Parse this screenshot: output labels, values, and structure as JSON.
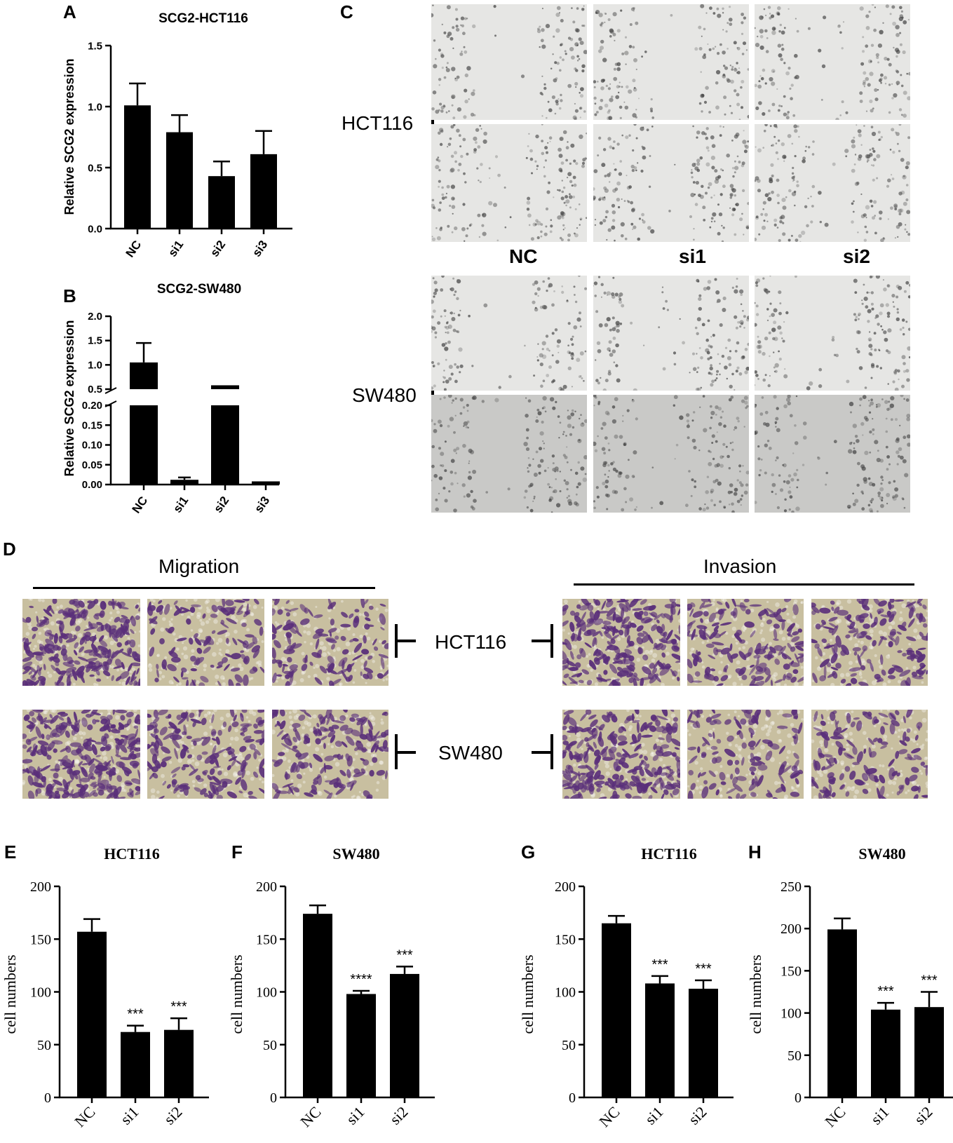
{
  "panels": {
    "A": "A",
    "B": "B",
    "C": "C",
    "D": "D",
    "E": "E",
    "F": "F",
    "G": "G",
    "H": "H"
  },
  "panel_c": {
    "row_labels": [
      "HCT116",
      "SW480"
    ],
    "col_labels": [
      "NC",
      "si1",
      "si2"
    ]
  },
  "panel_d": {
    "migration_label": "Migration",
    "invasion_label": "Invasion",
    "row_labels": [
      "HCT116",
      "SW480"
    ]
  },
  "colors": {
    "bar": "#000000",
    "wound_light": "#e6e6e4",
    "wound_dark": "#c9c9c7",
    "stain_bg": "#c8bfa0",
    "stain_cell": "#5a2f7a"
  },
  "chart_data": [
    {
      "id": "A",
      "type": "bar",
      "title": "SCG2-HCT116",
      "ylabel": "Relative SCG2 expression",
      "xlabel": "",
      "categories": [
        "NC",
        "si1",
        "si2",
        "si3"
      ],
      "values": [
        1.01,
        0.79,
        0.43,
        0.61
      ],
      "errors": [
        0.18,
        0.14,
        0.12,
        0.19
      ],
      "ylim": [
        0,
        1.5
      ],
      "yticks": [
        "0.0",
        "0.5",
        "1.0",
        "1.5"
      ],
      "significance": [
        "",
        "",
        "",
        ""
      ]
    },
    {
      "id": "B",
      "type": "bar",
      "title": "SCG2-SW480",
      "ylabel": "Relative SCG2 expression",
      "xlabel": "",
      "categories": [
        "NC",
        "si1",
        "si2",
        "si3"
      ],
      "values": [
        1.05,
        0.012,
        0.58,
        0.008
      ],
      "errors": [
        0.4,
        0.006,
        0.0,
        0.0
      ],
      "axis_break": [
        0.2,
        0.5
      ],
      "ylim_lower": [
        0,
        0.2
      ],
      "ylim_upper": [
        0.5,
        2.0
      ],
      "yticks_lower": [
        "0.00",
        "0.05",
        "0.10",
        "0.15",
        "0.20"
      ],
      "yticks_upper": [
        "0.5",
        "1.0",
        "1.5",
        "2.0"
      ],
      "significance": [
        "",
        "",
        "",
        ""
      ]
    },
    {
      "id": "E",
      "type": "bar",
      "title": "HCT116",
      "ylabel": "cell numbers",
      "xlabel": "",
      "categories": [
        "NC",
        "si1",
        "si2"
      ],
      "values": [
        157,
        62,
        64
      ],
      "errors": [
        12,
        6,
        11
      ],
      "ylim": [
        0,
        200
      ],
      "yticks": [
        "0",
        "50",
        "100",
        "150",
        "200"
      ],
      "significance": [
        "",
        "***",
        "***"
      ]
    },
    {
      "id": "F",
      "type": "bar",
      "title": "SW480",
      "ylabel": "cell numbers",
      "xlabel": "",
      "categories": [
        "NC",
        "si1",
        "si2"
      ],
      "values": [
        174,
        98,
        117
      ],
      "errors": [
        8,
        3,
        7
      ],
      "ylim": [
        0,
        200
      ],
      "yticks": [
        "0",
        "50",
        "100",
        "150",
        "200"
      ],
      "significance": [
        "",
        "****",
        "***"
      ]
    },
    {
      "id": "G",
      "type": "bar",
      "title": "HCT116",
      "ylabel": "cell numbers",
      "xlabel": "",
      "categories": [
        "NC",
        "si1",
        "si2"
      ],
      "values": [
        165,
        108,
        103
      ],
      "errors": [
        7,
        7,
        8
      ],
      "ylim": [
        0,
        200
      ],
      "yticks": [
        "0",
        "50",
        "100",
        "150",
        "200"
      ],
      "significance": [
        "",
        "***",
        "***"
      ]
    },
    {
      "id": "H",
      "type": "bar",
      "title": "SW480",
      "ylabel": "cell numbers",
      "xlabel": "",
      "categories": [
        "NC",
        "si1",
        "si2"
      ],
      "values": [
        199,
        104,
        107
      ],
      "errors": [
        13,
        8,
        18
      ],
      "ylim": [
        0,
        250
      ],
      "yticks": [
        "0",
        "50",
        "100",
        "150",
        "200",
        "250"
      ],
      "significance": [
        "",
        "***",
        "***"
      ]
    }
  ]
}
